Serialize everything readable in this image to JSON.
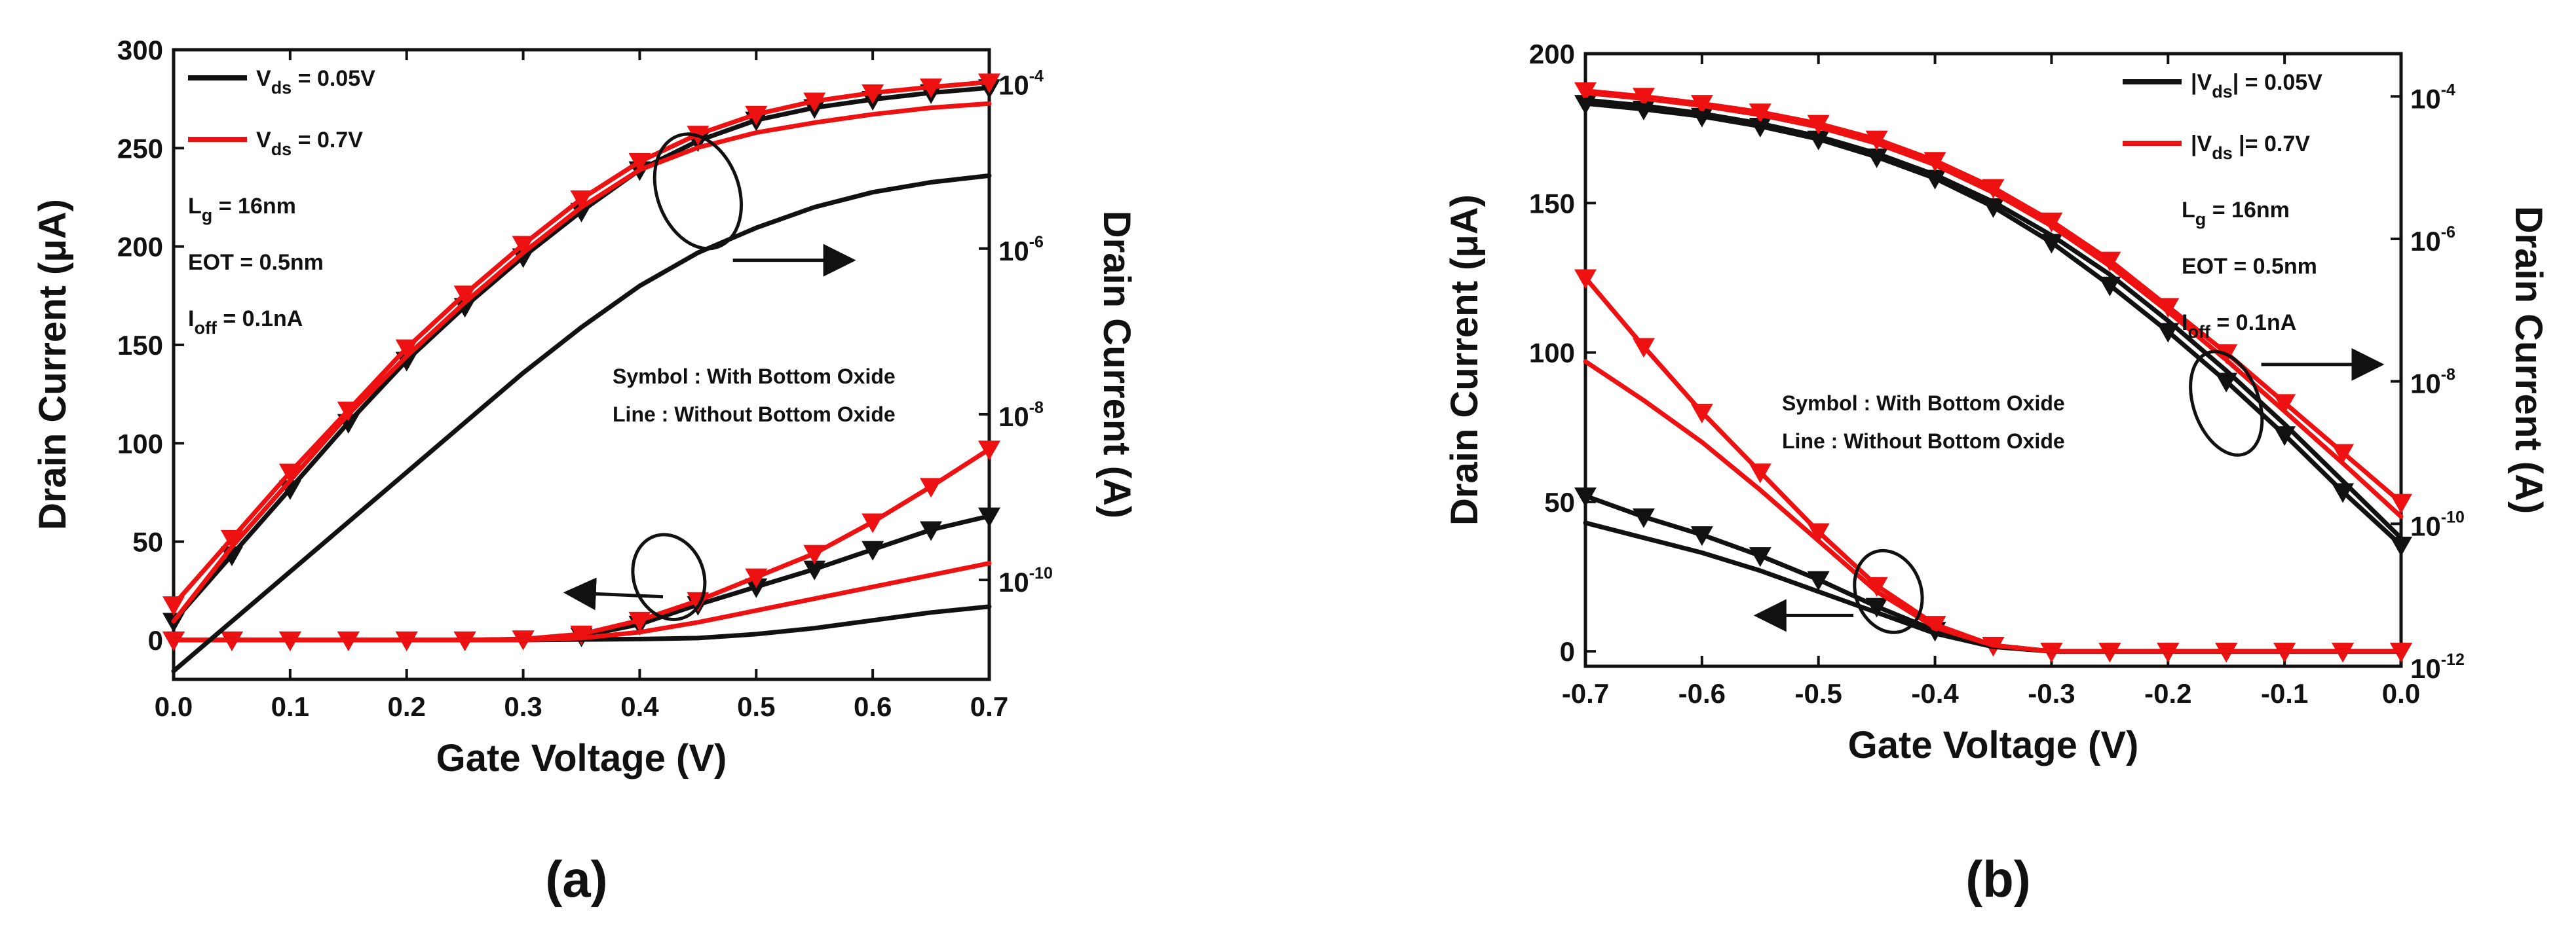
{
  "colors": {
    "black": "#111111",
    "red": "#ee1111",
    "axis": "#111111"
  },
  "chart_data": [
    {
      "type": "line",
      "panel": "(a)",
      "xlabel": "Gate Voltage (V)",
      "ylabel_left": "Drain Current (μA)",
      "ylabel_right": "Drain Current (A)",
      "xlim": [
        0.0,
        0.7
      ],
      "ylim_left": [
        -20,
        300
      ],
      "ylim_right_log10": [
        -11.2,
        -3.6
      ],
      "xticks": [
        "0.0",
        "0.1",
        "0.2",
        "0.3",
        "0.4",
        "0.5",
        "0.6",
        "0.7"
      ],
      "yticks_left": [
        "0",
        "50",
        "100",
        "150",
        "200",
        "250",
        "300"
      ],
      "yticks_right": [
        {
          "base": "10",
          "exp": "-4"
        },
        {
          "base": "10",
          "exp": "-6"
        },
        {
          "base": "10",
          "exp": "-8"
        },
        {
          "base": "10",
          "exp": "-10"
        }
      ],
      "legend": [
        {
          "pre": "V",
          "sub": "ds",
          "post": " = 0.05V",
          "color": "#111111"
        },
        {
          "pre": "V",
          "sub": "ds",
          "post": " = 0.7V",
          "color": "#ee1111"
        }
      ],
      "params": [
        {
          "pre": "L",
          "sub": "g",
          "post": " = 16nm"
        },
        {
          "pre": "EOT = 0.5nm",
          "sub": "",
          "post": ""
        },
        {
          "pre": "I",
          "sub": "off",
          "post": " = 0.1nA"
        }
      ],
      "notes": [
        "Symbol : With Bottom Oxide",
        "Line : Without Bottom Oxide"
      ],
      "series": [
        {
          "name": "Vds=0.05V with BOX (linear)",
          "axis": "left",
          "color": "#111111",
          "marker": true,
          "x": [
            0,
            0.05,
            0.1,
            0.15,
            0.2,
            0.25,
            0.3,
            0.35,
            0.4,
            0.45,
            0.5,
            0.55,
            0.6,
            0.65,
            0.7
          ],
          "y": [
            0,
            0,
            0,
            0,
            0,
            0,
            0.5,
            2,
            8,
            18,
            27,
            36,
            46,
            56,
            63
          ]
        },
        {
          "name": "Vds=0.7V with BOX (linear)",
          "axis": "left",
          "color": "#ee1111",
          "marker": true,
          "x": [
            0,
            0.05,
            0.1,
            0.15,
            0.2,
            0.25,
            0.3,
            0.35,
            0.4,
            0.45,
            0.5,
            0.55,
            0.6,
            0.65,
            0.7
          ],
          "y": [
            0,
            0,
            0,
            0,
            0,
            0,
            0.5,
            3,
            10,
            20,
            32,
            44,
            60,
            78,
            97
          ]
        },
        {
          "name": "Vds=0.05V without BOX (linear)",
          "axis": "left",
          "color": "#111111",
          "marker": false,
          "x": [
            0,
            0.1,
            0.2,
            0.3,
            0.4,
            0.45,
            0.5,
            0.55,
            0.6,
            0.65,
            0.7
          ],
          "y": [
            0,
            0,
            0,
            0,
            0.5,
            1,
            3,
            6,
            10,
            14,
            17
          ]
        },
        {
          "name": "Vds=0.7V without BOX (linear)",
          "axis": "left",
          "color": "#ee1111",
          "marker": false,
          "x": [
            0,
            0.1,
            0.2,
            0.3,
            0.35,
            0.4,
            0.45,
            0.5,
            0.55,
            0.6,
            0.65,
            0.7
          ],
          "y": [
            0,
            0,
            0,
            0,
            1,
            4,
            9,
            15,
            21,
            27,
            33,
            39
          ]
        },
        {
          "name": "Vds=0.05V with BOX (log)",
          "axis": "right",
          "color": "#111111",
          "marker": true,
          "x": [
            0,
            0.05,
            0.1,
            0.15,
            0.2,
            0.25,
            0.3,
            0.35,
            0.4,
            0.45,
            0.5,
            0.55,
            0.6,
            0.65,
            0.7
          ],
          "y": [
            -10.5,
            -9.7,
            -8.9,
            -8.1,
            -7.35,
            -6.7,
            -6.1,
            -5.55,
            -5.05,
            -4.7,
            -4.45,
            -4.3,
            -4.2,
            -4.12,
            -4.06
          ]
        },
        {
          "name": "Vds=0.7V with BOX (log)",
          "axis": "right",
          "color": "#ee1111",
          "marker": true,
          "x": [
            0,
            0.05,
            0.1,
            0.15,
            0.2,
            0.25,
            0.3,
            0.35,
            0.4,
            0.45,
            0.5,
            0.55,
            0.6,
            0.65,
            0.7
          ],
          "y": [
            -10.3,
            -9.5,
            -8.7,
            -7.95,
            -7.2,
            -6.55,
            -5.95,
            -5.4,
            -4.95,
            -4.62,
            -4.38,
            -4.22,
            -4.12,
            -4.05,
            -3.99
          ]
        },
        {
          "name": "Vds=0.05V without BOX (log)",
          "axis": "right",
          "color": "#111111",
          "marker": false,
          "x": [
            0,
            0.05,
            0.1,
            0.15,
            0.2,
            0.25,
            0.3,
            0.35,
            0.4,
            0.45,
            0.5,
            0.55,
            0.6,
            0.65,
            0.7
          ],
          "y": [
            -11.1,
            -10.5,
            -9.9,
            -9.3,
            -8.7,
            -8.1,
            -7.5,
            -6.95,
            -6.45,
            -6.05,
            -5.75,
            -5.5,
            -5.32,
            -5.2,
            -5.12
          ]
        },
        {
          "name": "Vds=0.7V without BOX (log)",
          "axis": "right",
          "color": "#ee1111",
          "marker": false,
          "x": [
            0,
            0.05,
            0.1,
            0.15,
            0.2,
            0.25,
            0.3,
            0.35,
            0.4,
            0.45,
            0.5,
            0.55,
            0.6,
            0.65,
            0.7
          ],
          "y": [
            -10.5,
            -9.6,
            -8.8,
            -8.0,
            -7.3,
            -6.65,
            -6.05,
            -5.5,
            -5.05,
            -4.78,
            -4.6,
            -4.48,
            -4.38,
            -4.3,
            -4.25
          ]
        }
      ],
      "annotations": [
        {
          "kind": "ellipse",
          "at": [
            0.425,
            32
          ],
          "axis": "left",
          "rx_data": 0.03,
          "ry_data": 22
        },
        {
          "kind": "arrow",
          "from": [
            0.42,
            22
          ],
          "to": [
            0.34,
            24
          ],
          "axis": "left"
        },
        {
          "kind": "ellipse",
          "at": [
            0.45,
            228
          ],
          "axis": "left",
          "rx_data": 0.035,
          "ry_data": 30
        },
        {
          "kind": "arrow",
          "from": [
            0.48,
            193
          ],
          "to": [
            0.58,
            193
          ],
          "axis": "left"
        }
      ]
    },
    {
      "type": "line",
      "panel": "(b)",
      "xlabel": "Gate Voltage (V)",
      "ylabel_left": "Drain Current (μA)",
      "ylabel_right": "Drain Current (A)",
      "xlim": [
        -0.7,
        0.0
      ],
      "ylim_left": [
        -5,
        200
      ],
      "ylim_right_log10": [
        -12,
        -3.4
      ],
      "xticks": [
        "-0.7",
        "-0.6",
        "-0.5",
        "-0.4",
        "-0.3",
        "-0.2",
        "-0.1",
        "0.0"
      ],
      "yticks_left": [
        "0",
        "50",
        "100",
        "150",
        "200"
      ],
      "yticks_right": [
        {
          "base": "10",
          "exp": "-4"
        },
        {
          "base": "10",
          "exp": "-6"
        },
        {
          "base": "10",
          "exp": "-8"
        },
        {
          "base": "10",
          "exp": "-10"
        },
        {
          "base": "10",
          "exp": "-12"
        }
      ],
      "legend": [
        {
          "pre": "|V",
          "sub": "ds",
          "post": "| = 0.05V",
          "color": "#111111"
        },
        {
          "pre": "|V",
          "sub": "ds",
          "post": " |= 0.7V",
          "color": "#ee1111"
        }
      ],
      "params": [
        {
          "pre": "L",
          "sub": "g",
          "post": " = 16nm"
        },
        {
          "pre": "EOT = 0.5nm",
          "sub": "",
          "post": ""
        },
        {
          "pre": "I",
          "sub": "off",
          "post": " = 0.1nA"
        }
      ],
      "notes": [
        "Symbol : With Bottom Oxide",
        "Line : Without Bottom Oxide"
      ],
      "series": [
        {
          "name": "|Vds|=0.05V with BOX (linear)",
          "axis": "left",
          "color": "#111111",
          "marker": true,
          "x": [
            -0.7,
            -0.65,
            -0.6,
            -0.55,
            -0.5,
            -0.45,
            -0.4,
            -0.35,
            -0.3,
            -0.25,
            -0.2,
            -0.15,
            -0.1,
            -0.05,
            0
          ],
          "y": [
            52,
            45,
            39,
            32,
            24,
            15,
            7,
            2,
            0,
            0,
            0,
            0,
            0,
            0,
            0
          ]
        },
        {
          "name": "|Vds|=0.7V with BOX (linear)",
          "axis": "left",
          "color": "#ee1111",
          "marker": true,
          "x": [
            -0.7,
            -0.65,
            -0.6,
            -0.55,
            -0.5,
            -0.45,
            -0.4,
            -0.35,
            -0.3,
            -0.25,
            -0.2,
            -0.15,
            -0.1,
            -0.05,
            0
          ],
          "y": [
            125,
            102,
            80,
            60,
            40,
            22,
            9,
            2,
            0,
            0,
            0,
            0,
            0,
            0,
            0
          ]
        },
        {
          "name": "|Vds|=0.05V without BOX (linear)",
          "axis": "left",
          "color": "#111111",
          "marker": false,
          "x": [
            -0.7,
            -0.65,
            -0.6,
            -0.55,
            -0.5,
            -0.45,
            -0.4,
            -0.35,
            -0.3,
            -0.25,
            -0.2,
            -0.1,
            0
          ],
          "y": [
            43,
            38,
            33,
            27,
            20,
            13,
            6,
            1.5,
            0,
            0,
            0,
            0,
            0
          ]
        },
        {
          "name": "|Vds|=0.7V without BOX (linear)",
          "axis": "left",
          "color": "#ee1111",
          "marker": false,
          "x": [
            -0.7,
            -0.65,
            -0.6,
            -0.55,
            -0.5,
            -0.45,
            -0.4,
            -0.35,
            -0.3,
            -0.25,
            -0.2,
            -0.1,
            0
          ],
          "y": [
            97,
            84,
            70,
            54,
            37,
            20,
            8,
            2,
            0,
            0,
            0,
            0,
            0
          ]
        },
        {
          "name": "|Vds|=0.05V with BOX (log)",
          "axis": "right",
          "color": "#111111",
          "marker": true,
          "x": [
            -0.7,
            -0.65,
            -0.6,
            -0.55,
            -0.5,
            -0.45,
            -0.4,
            -0.35,
            -0.3,
            -0.25,
            -0.2,
            -0.15,
            -0.1,
            -0.05,
            0
          ],
          "y": [
            -4.1,
            -4.18,
            -4.28,
            -4.42,
            -4.6,
            -4.85,
            -5.15,
            -5.55,
            -6.05,
            -6.65,
            -7.3,
            -8.0,
            -8.75,
            -9.55,
            -10.3
          ]
        },
        {
          "name": "|Vds|=0.7V with BOX (log)",
          "axis": "right",
          "color": "#ee1111",
          "marker": true,
          "x": [
            -0.7,
            -0.65,
            -0.6,
            -0.55,
            -0.5,
            -0.45,
            -0.4,
            -0.35,
            -0.3,
            -0.25,
            -0.2,
            -0.15,
            -0.1,
            -0.05,
            0
          ],
          "y": [
            -3.92,
            -4.0,
            -4.1,
            -4.22,
            -4.38,
            -4.6,
            -4.9,
            -5.28,
            -5.75,
            -6.3,
            -6.95,
            -7.6,
            -8.3,
            -9.0,
            -9.7
          ]
        },
        {
          "name": "|Vds|=0.05V without BOX (log)",
          "axis": "right",
          "color": "#111111",
          "marker": false,
          "x": [
            -0.7,
            -0.65,
            -0.6,
            -0.55,
            -0.5,
            -0.45,
            -0.4,
            -0.35,
            -0.3,
            -0.25,
            -0.2,
            -0.15,
            -0.1,
            -0.05,
            0
          ],
          "y": [
            -4.05,
            -4.13,
            -4.24,
            -4.38,
            -4.56,
            -4.8,
            -5.1,
            -5.48,
            -5.95,
            -6.5,
            -7.15,
            -7.85,
            -8.6,
            -9.4,
            -10.2
          ]
        },
        {
          "name": "|Vds|=0.7V without BOX (log)",
          "axis": "right",
          "color": "#ee1111",
          "marker": false,
          "x": [
            -0.7,
            -0.65,
            -0.6,
            -0.55,
            -0.5,
            -0.45,
            -0.4,
            -0.35,
            -0.3,
            -0.25,
            -0.2,
            -0.15,
            -0.1,
            -0.05,
            0
          ],
          "y": [
            -3.95,
            -4.03,
            -4.13,
            -4.26,
            -4.43,
            -4.66,
            -4.96,
            -5.35,
            -5.82,
            -6.38,
            -7.02,
            -7.7,
            -8.42,
            -9.15,
            -9.9
          ]
        }
      ],
      "annotations": [
        {
          "kind": "ellipse",
          "at": [
            -0.44,
            20
          ],
          "axis": "left",
          "rx_data": 0.028,
          "ry_data": 14
        },
        {
          "kind": "arrow",
          "from": [
            -0.47,
            12
          ],
          "to": [
            -0.55,
            12
          ],
          "axis": "left"
        },
        {
          "kind": "ellipse",
          "at": [
            -0.15,
            83
          ],
          "axis": "left",
          "rx_data": 0.028,
          "ry_data": 18
        },
        {
          "kind": "arrow",
          "from": [
            -0.12,
            96
          ],
          "to": [
            -0.02,
            96
          ],
          "axis": "left"
        }
      ]
    }
  ]
}
